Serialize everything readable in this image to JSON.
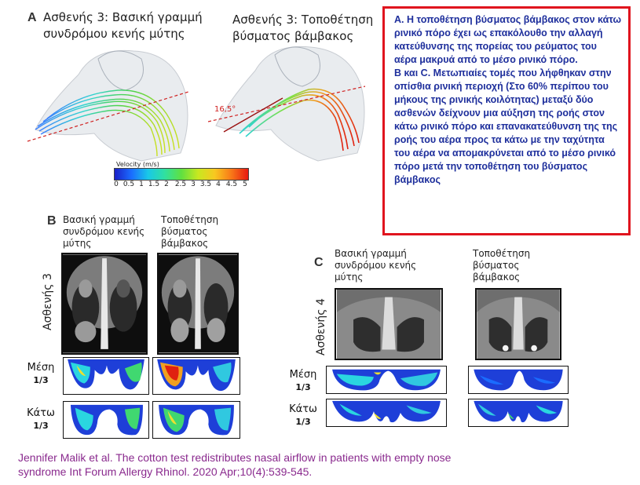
{
  "panel_a": {
    "letter": "A",
    "left_title": [
      "Ασθενής 3: Βασική γραμμή",
      "συνδρόμου κενής μύτης"
    ],
    "right_title": [
      "Ασθενής 3: Τοποθέτηση",
      "βύσματος βάμβακος"
    ],
    "angle_label": "16,5°",
    "colorbar": {
      "title": "Velocity (m/s)",
      "ticks": [
        "0",
        "0.5",
        "1",
        "1.5",
        "2",
        "2.5",
        "3",
        "3.5",
        "4",
        "4.5",
        "5"
      ]
    }
  },
  "note": {
    "para1": "A. Η τοποθέτηση βύσματος βάμβακος στον κάτω ρινικό πόρο έχει ως επακόλουθο την αλλαγή κατεύθυνσης της πορείας του ρεύματος του αέρα μακρυά από το μέσο ρινικό πόρο.",
    "para2": "B και C. Μετωπιαίες τομές που λήφθηκαν στην οπίσθια ρινική περιοχή (Στο 60% περίπου του μήκους της ρινικής κοιλότητας) μεταξύ δύο ασθενών δείχνουν μια αύξηση της ροής στον κάτω ρινικό πόρο και επανακατεύθυνση της της ροής του αέρα προς τα κάτω με την ταχύτητα του αέρα να απομακρύνεται από το μέσο ρινικό πόρο μετά την τοποθέτηση του βύσματος βάμβακος"
  },
  "panel_b": {
    "letter": "B",
    "left_title": [
      "Βασική γραμμή",
      "συνδρόμου κενής",
      "μύτης"
    ],
    "right_title": [
      "Τοποθέτηση",
      "βύσματος",
      "βάμβακος"
    ],
    "patient_label": "Ασθενής 3",
    "middle_label": "Μέση",
    "middle_fraction": "1/3",
    "lower_label": "Κάτω",
    "lower_fraction": "1/3"
  },
  "panel_c": {
    "letter": "C",
    "left_title": [
      "Βασική γραμμή",
      "συνδρόμου κενής",
      "μύτης"
    ],
    "right_title": [
      "Τοποθέτηση",
      "βύσματος",
      "βάμβακος"
    ],
    "patient_label": "Ασθενής 4",
    "middle_label": "Μέση",
    "middle_fraction": "1/3",
    "lower_label": "Κάτω",
    "lower_fraction": "1/3"
  },
  "citation": [
    "Jennifer Malik et al. The cotton test redistributes nasal airflow in patients with empty nose",
    "syndrome Int Forum Allergy Rhinol. 2020 Apr;10(4):539-545."
  ],
  "colors": {
    "note_border": "#e0141e",
    "note_text": "#1e2f9c",
    "citation_text": "#8a2a8e"
  }
}
